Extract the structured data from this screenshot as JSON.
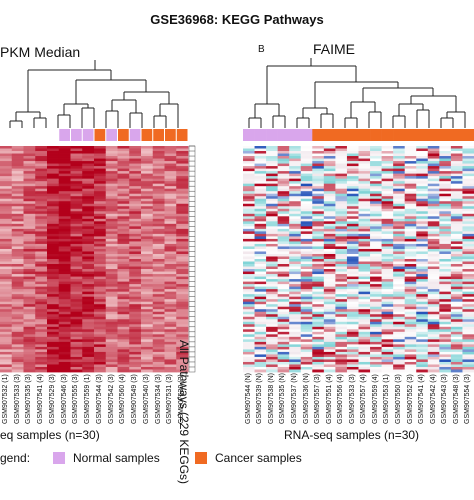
{
  "figure": {
    "title": "GSE36968: KEGG Pathways",
    "left_panel_heading": "PKM Median",
    "right_panel_label": "B",
    "right_panel_heading": "FAIME",
    "pathway_axis_label": "All Pathways (229 KEGGs)",
    "left_xaxis_label": "eq samples (n=30)",
    "right_xaxis_label": "RNA-seq samples (n=30)",
    "legend_label": "gend:",
    "legend_items": [
      {
        "label": "Normal samples",
        "color": "#d9a6ec"
      },
      {
        "label": "Cancer samples",
        "color": "#f06a22"
      }
    ],
    "left_sample_labels": [
      "GSM907532 (1)",
      "GSM907533 (3)",
      "GSM907535 (3)",
      "GSM907541 (4)",
      "GSM907529 (3)",
      "GSM907546 (3)",
      "GSM907555 (3)",
      "GSM907559 (1)",
      "GSM907544 (3)",
      "GSM907542 (3)",
      "GSM907560 (4)",
      "GSM907549 (3)",
      "GSM907540 (3)",
      "GSM907534 (3)",
      "GSM907531 (3)",
      "GSM907530 (3)"
    ],
    "left_sample_groups": [
      "C",
      "C",
      "C",
      "C",
      "C",
      "N",
      "N",
      "N",
      "C",
      "N",
      "C",
      "N",
      "C",
      "C",
      "C",
      "C"
    ],
    "right_sample_labels": [
      "GSM907544 (N)",
      "GSM907539 (N)",
      "GSM907538 (N)",
      "GSM907535 (N)",
      "GSM907537 (N)",
      "GSM907536 (N)",
      "GSM907557 (3)",
      "GSM907551 (4)",
      "GSM907556 (4)",
      "GSM907533 (3)",
      "GSM907557 (4)",
      "GSM907559 (4)",
      "GSM907553 (1)",
      "GSM907550 (3)",
      "GSM907552 (3)",
      "GSM907541 (4)",
      "GSM907542 (4)",
      "GSM907543 (3)",
      "GSM907548 (3)",
      "GSM907554 (3)"
    ],
    "right_sample_groups": [
      "N",
      "N",
      "N",
      "N",
      "N",
      "N",
      "C",
      "C",
      "C",
      "C",
      "C",
      "C",
      "C",
      "C",
      "C",
      "C",
      "C",
      "C",
      "C",
      "C"
    ],
    "colors": {
      "normal": "#d9a6ec",
      "cancer": "#f06a22",
      "heat_high": "#b3001b",
      "heat_mid": "#ffffff",
      "heat_low": "#1f4fb8",
      "heat_teal": "#7fd3d6"
    }
  }
}
